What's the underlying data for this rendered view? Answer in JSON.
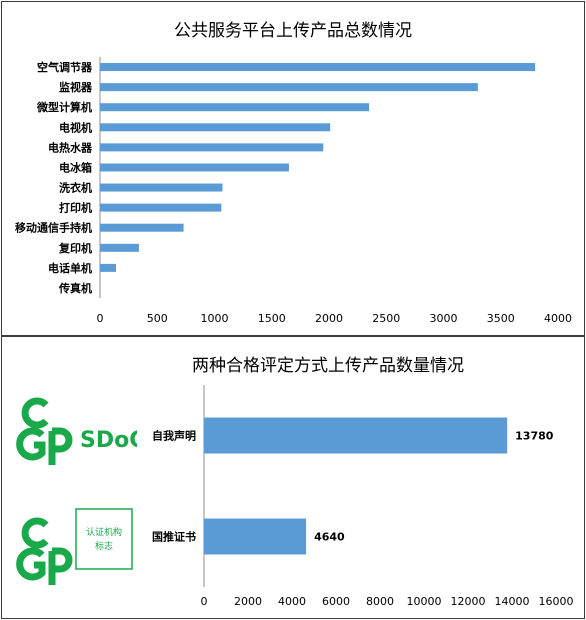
{
  "chart_data": [
    {
      "type": "bar",
      "orientation": "horizontal",
      "title": "公共服务平台上传产品总数情况",
      "categories": [
        "空气调节器",
        "监视器",
        "微型计算机",
        "电视机",
        "电热水器",
        "电冰箱",
        "洗衣机",
        "打印机",
        "移动通信手持机",
        "复印机",
        "电话单机",
        "传真机"
      ],
      "values": [
        3800,
        3300,
        2350,
        2010,
        1950,
        1650,
        1070,
        1060,
        730,
        340,
        140,
        0
      ],
      "xlim": [
        0,
        4000
      ],
      "xticks": [
        "0",
        "500",
        "1000",
        "1500",
        "2000",
        "2500",
        "3000",
        "3500",
        "4000"
      ],
      "bar_color": "#5b9bd5",
      "grid": false
    },
    {
      "type": "bar",
      "orientation": "horizontal",
      "title": "两种合格评定方式上传产品数量情况",
      "categories": [
        "自我声明",
        "国推证书"
      ],
      "values": [
        13780,
        4640
      ],
      "data_labels": [
        "13780",
        "4640"
      ],
      "xlim": [
        0,
        16000
      ],
      "xticks": [
        "0",
        "2000",
        "4000",
        "6000",
        "8000",
        "10000",
        "12000",
        "14000",
        "16000"
      ],
      "bar_color": "#5b9bd5",
      "grid": false
    }
  ],
  "logos": {
    "sdoc_text": "SDoC",
    "cert_box_text_line1": "认证机构",
    "cert_box_text_line2": "标志",
    "logo_color": "#1aa94a"
  }
}
